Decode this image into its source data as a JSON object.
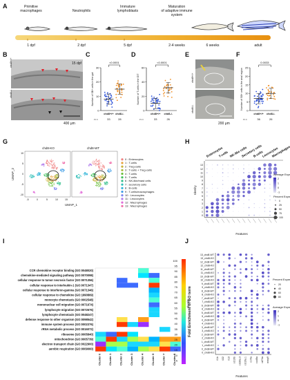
{
  "panels": {
    "A": "A",
    "B": "B",
    "C": "C",
    "D": "D",
    "E": "E",
    "F": "F",
    "G": "G",
    "H": "H",
    "I": "I",
    "J": "J"
  },
  "timeline": {
    "stages": [
      {
        "label": "Primitive\nmacrophages",
        "time": "1 dpf"
      },
      {
        "label": "Neutrophils",
        "time": "2 dpf"
      },
      {
        "label": "Immature\nlymphoblasts",
        "time": "5 dpf"
      },
      {
        "label": "Maturation\nof adaptive immune\nsystem",
        "time": "2-4 weeks"
      },
      {
        "label": "",
        "time": "6 weeks"
      },
      {
        "label": "",
        "time": "adult"
      }
    ]
  },
  "panel_b": {
    "genotype_top": "chd8+/+",
    "genotype_bottom": "chd8-/-",
    "stage": "15 dpf",
    "scale": "400 μm"
  },
  "chart_data": [
    {
      "type": "scatter",
      "panel": "C",
      "ylabel": "Number of SB+ cells in the gut",
      "groups": [
        "chd8+/+",
        "chd8-/-"
      ],
      "n_label": "n =",
      "n": [
        33,
        28
      ],
      "pvalue": "<0.0001",
      "ylim": [
        0,
        30
      ],
      "yticks": [
        0,
        10,
        20,
        30
      ],
      "mean": [
        8,
        15
      ]
    },
    {
      "type": "scatter",
      "panel": "D",
      "ylabel": "Number of T-cells in the GIT",
      "groups": [
        "chd8+/+",
        "chd8-/-"
      ],
      "n_label": "n =",
      "n": [
        33,
        26
      ],
      "pvalue": "<0.0001",
      "ylim": [
        0,
        60
      ],
      "yticks": [
        0,
        20,
        40,
        60
      ],
      "mean": [
        10,
        32
      ]
    },
    {
      "type": "scatter",
      "panel": "F",
      "ylabel": "Number of SB+ cells in the anal region",
      "groups": [
        "chd8+/+",
        "chd8-/-"
      ],
      "n_label": "n =",
      "n": [
        36,
        26
      ],
      "pvalue": "0.0033",
      "ylim": [
        0,
        25
      ],
      "yticks": [
        0,
        5,
        10,
        15,
        20,
        25
      ],
      "mean": [
        7,
        10
      ]
    }
  ],
  "panel_e": {
    "genotype_top": "chd8+/+",
    "genotype_bottom": "chd8-/-",
    "scale": "200 μm"
  },
  "umap": {
    "title_left": "chd8-KO",
    "title_right": "chd8-WT",
    "xlabel": "UMAP_1",
    "ylabel": "UMAP_2",
    "xticks": [
      "-5",
      "0",
      "5",
      "10",
      "15"
    ],
    "yticks": [
      "-10",
      "-5",
      "0",
      "5",
      "10"
    ],
    "clusters": [
      {
        "id": "0",
        "name": "Enterocytes",
        "color": "#f08080"
      },
      {
        "id": "1",
        "name": "T-cells",
        "color": "#e8a33c"
      },
      {
        "id": "2",
        "name": "Treg-cells",
        "color": "#c9b23a"
      },
      {
        "id": "3",
        "name": "T-cells + Treg-cells",
        "color": "#a8b83a"
      },
      {
        "id": "4",
        "name": "T-cells",
        "color": "#6cbf3a"
      },
      {
        "id": "5",
        "name": "T-cells",
        "color": "#3fc15a"
      },
      {
        "id": "6",
        "name": "NK-like/mast cells",
        "color": "#34c08c"
      },
      {
        "id": "7",
        "name": "secretory cells",
        "color": "#31bfb8"
      },
      {
        "id": "8",
        "name": "B-cells",
        "color": "#2fb4d8"
      },
      {
        "id": "9",
        "name": "T-cells/macrophages",
        "color": "#3f9de6"
      },
      {
        "id": "10",
        "name": "Leucocytes",
        "color": "#7a86ee"
      },
      {
        "id": "11",
        "name": "Leucocytes",
        "color": "#b07cec"
      },
      {
        "id": "12",
        "name": "Macrophages",
        "color": "#e06ad8"
      },
      {
        "id": "13",
        "name": "Macrophages",
        "color": "#f06aa8"
      }
    ]
  },
  "dotplot_h": {
    "groups": [
      "Enterocytes",
      "T-cells",
      "NK-like cells",
      "Secretory cells",
      "B-cells",
      "Leucocytes",
      "Macrophages"
    ],
    "rows": [
      "0",
      "1",
      "2",
      "3",
      "4",
      "5",
      "6",
      "7",
      "8",
      "9",
      "10",
      "11",
      "12",
      "13"
    ],
    "ylabel": "Identity",
    "xlabel": "Features",
    "legend_avg": "Average Expression",
    "avg_ticks": [
      "2",
      "1",
      "0",
      "-1"
    ],
    "legend_pct": "Percent Expressed",
    "pct_ticks": [
      "0",
      "25",
      "50",
      "75",
      "100"
    ]
  },
  "heatmap_i": {
    "terms": [
      "CCR chemokine receptor binding (GO:0048020)",
      "chemokine-mediated signaling pathway (GO:0070098)",
      "cellular response to tumor necrosis factor (GO:0071356)",
      "cellular response to interleukin-1 (GO:0071347)",
      "cellular response to interferon-gamma (GO:0071346)",
      "cellular response to chemokine (GO:1990869)",
      "monocyte chemotaxis (GO:0002548)",
      "mononuclear cell migration (GO:0071674)",
      "lymphocyte migration (GO:0072676)",
      "lymphocyte chemotaxis (GO:0048247)",
      "defense response to other organism (GO:0098542)",
      "immune system process (GO:0002376)",
      "rRNA metabolic process (GO:0016072)",
      "ribosome (GO:0005840)",
      "mitochondrion (GO:0005739)",
      "electron transport chain (GO:0022900)",
      "aerobic respiration (GO:0009060)"
    ],
    "clusters": [
      "Cluster 0",
      "Cluster 1",
      "Cluster 2",
      "Cluster 3",
      "Cluster 4",
      "Cluster 5",
      "Cluster 7",
      "Cluster 8"
    ],
    "legend_title": "Fold Enrichment of GO term",
    "legend_ticks": [
      "100",
      "95",
      "90",
      "85",
      "80",
      "75",
      "70",
      "65",
      "60",
      "55",
      "50",
      "45",
      "40",
      "35",
      "30",
      "25",
      "20",
      "15",
      "10",
      "5"
    ]
  },
  "dotplot_j": {
    "rows": [
      "13_chd8-WT",
      "13_chd8-KO",
      "12_chd8-WT",
      "12_chd8-KO",
      "11_chd8-WT",
      "11_chd8-KO",
      "10_chd8-WT",
      "10_chd8-KO",
      "9_chd8-WT",
      "9_chd8-KO",
      "8_chd8-WT",
      "8_chd8-KO",
      "7_chd8-WT",
      "7_chd8-KO",
      "6_chd8-WT",
      "6_chd8-KO",
      "5_chd8-WT",
      "5_chd8-KO",
      "4_chd8-WT",
      "4_chd8-KO",
      "3_chd8-WT",
      "3_chd8-KO",
      "2_chd8-WT",
      "2_chd8-KO",
      "1_chd8-WT",
      "1_chd8-KO",
      "0_chd8-WT",
      "0_chd8-KO"
    ],
    "features": [
      "il1b",
      "il22",
      "il13",
      "ccl19b",
      "ccl20a.3",
      "ccl19a.1",
      "ccr9a",
      "cxcl8a",
      "cd74a",
      "mmp9"
    ],
    "ylabel": "Identity",
    "xlabel": "Features",
    "legend_pct": "Percent Expressed",
    "pct_ticks": [
      "20",
      "40",
      "60",
      "80"
    ],
    "legend_avg": "Average Expression",
    "avg_ticks": [
      "2",
      "1",
      "0",
      "-1"
    ]
  }
}
